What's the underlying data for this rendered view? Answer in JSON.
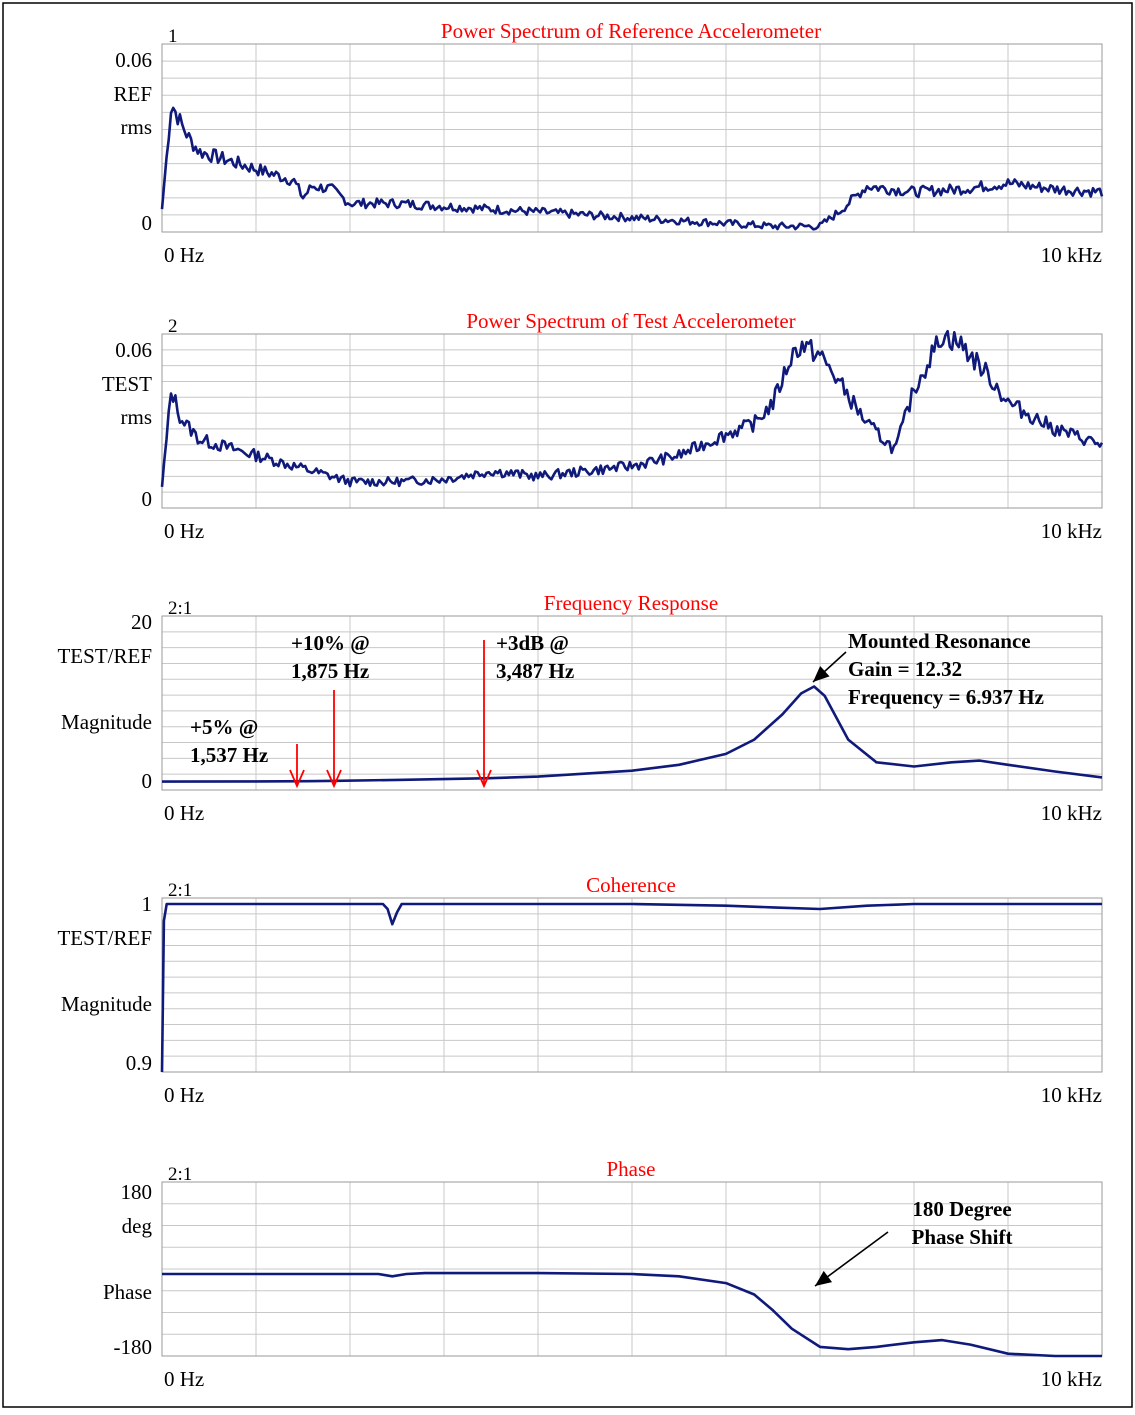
{
  "colors": {
    "trace": "#0f1a7a",
    "title": "#ff0000",
    "grid": "#c8c8c8",
    "border": "#000000",
    "arrow_red": "#ff0000",
    "arrow_black": "#000000"
  },
  "chart_data": [
    {
      "type": "line",
      "id": "ref",
      "panel_number": "1",
      "title": "Power Spectrum of Reference Accelerometer",
      "ylabel_lines": [
        "REF",
        "rms"
      ],
      "yticks": [
        "0.06",
        "0"
      ],
      "ylim": [
        0,
        0.06
      ],
      "xlim": [
        0,
        10000
      ],
      "x_tick_labels": [
        "0  Hz",
        "10 kHz"
      ],
      "x_unit": "Hz",
      "grid": true,
      "series": [
        {
          "x": [
            0,
            100,
            200,
            300,
            400,
            600,
            800,
            1000,
            1200,
            1400,
            1500,
            1600,
            1800,
            2000,
            2500,
            3000,
            3500,
            4000,
            4500,
            5000,
            5500,
            6000,
            6500,
            7000,
            7200,
            7500,
            8000,
            8500,
            9000,
            9500,
            10000
          ],
          "y": [
            0.008,
            0.045,
            0.038,
            0.032,
            0.028,
            0.026,
            0.024,
            0.022,
            0.02,
            0.018,
            0.012,
            0.016,
            0.015,
            0.01,
            0.01,
            0.009,
            0.008,
            0.007,
            0.006,
            0.005,
            0.004,
            0.003,
            0.002,
            0.002,
            0.007,
            0.016,
            0.014,
            0.015,
            0.017,
            0.015,
            0.014
          ]
        }
      ]
    },
    {
      "type": "line",
      "id": "test",
      "panel_number": "2",
      "title": "Power Spectrum of Test Accelerometer",
      "ylabel_lines": [
        "TEST",
        "rms"
      ],
      "yticks": [
        "0.06",
        "0"
      ],
      "ylim": [
        0,
        0.06
      ],
      "xlim": [
        0,
        10000
      ],
      "x_tick_labels": [
        "0  Hz",
        "10 kHz"
      ],
      "x_unit": "Hz",
      "grid": true,
      "series": [
        {
          "x": [
            0,
            100,
            200,
            400,
            600,
            800,
            1000,
            1500,
            2000,
            2500,
            3000,
            3500,
            4000,
            4500,
            5000,
            5500,
            6000,
            6300,
            6500,
            6700,
            6800,
            7000,
            7200,
            7500,
            7800,
            8000,
            8300,
            8500,
            8800,
            9000,
            9500,
            10000
          ],
          "y": [
            0.008,
            0.045,
            0.034,
            0.026,
            0.024,
            0.022,
            0.02,
            0.015,
            0.01,
            0.01,
            0.011,
            0.014,
            0.012,
            0.014,
            0.016,
            0.02,
            0.028,
            0.032,
            0.04,
            0.058,
            0.062,
            0.058,
            0.048,
            0.032,
            0.022,
            0.045,
            0.066,
            0.062,
            0.05,
            0.04,
            0.03,
            0.024
          ]
        }
      ]
    },
    {
      "type": "line",
      "id": "freq",
      "panel_number": "2:1",
      "title": "Frequency Response",
      "ylabel_lines": [
        "TEST/REF",
        "",
        "Magnitude"
      ],
      "yticks": [
        "20",
        "0"
      ],
      "ylim": [
        0,
        20
      ],
      "xlim": [
        0,
        10000
      ],
      "x_tick_labels": [
        "0  Hz",
        "10 kHz"
      ],
      "x_unit": "Hz",
      "grid": true,
      "series": [
        {
          "x": [
            0,
            1000,
            1537,
            1875,
            2500,
            3487,
            4000,
            5000,
            5500,
            6000,
            6300,
            6600,
            6800,
            6937,
            7050,
            7300,
            7600,
            8000,
            8400,
            8700,
            9000,
            9500,
            10000
          ],
          "y": [
            1.0,
            1.02,
            1.05,
            1.1,
            1.2,
            1.41,
            1.6,
            2.3,
            3.0,
            4.3,
            6.0,
            9.0,
            11.5,
            12.32,
            11.2,
            6.0,
            3.3,
            2.8,
            3.3,
            3.5,
            3.0,
            2.2,
            1.5
          ]
        }
      ],
      "annotations": [
        {
          "lines": [
            "+5% @",
            "1,537 Hz"
          ],
          "arrow_x": 1537,
          "arrow_color": "red"
        },
        {
          "lines": [
            "+10% @",
            "1,875 Hz"
          ],
          "arrow_x": 1875,
          "arrow_color": "red"
        },
        {
          "lines": [
            "+3dB @",
            "3,487 Hz"
          ],
          "arrow_x": 3487,
          "arrow_color": "red"
        },
        {
          "lines": [
            "Mounted Resonance",
            "Gain = 12.32",
            "Frequency = 6.937 Hz"
          ],
          "arrow_x": 6937,
          "arrow_color": "black"
        }
      ]
    },
    {
      "type": "line",
      "id": "coh",
      "panel_number": "2:1",
      "title": "Coherence",
      "ylabel_lines": [
        "TEST/REF",
        "",
        "Magnitude"
      ],
      "yticks": [
        "1",
        "0.9"
      ],
      "ylim": [
        0.9,
        1.0
      ],
      "xlim": [
        0,
        10000
      ],
      "x_tick_labels": [
        "0  Hz",
        "10 kHz"
      ],
      "x_unit": "Hz",
      "grid": true,
      "series": [
        {
          "x": [
            0,
            20,
            50,
            2000,
            2350,
            2400,
            2450,
            2500,
            2550,
            2600,
            5000,
            6000,
            6500,
            7000,
            7500,
            8000,
            10000
          ],
          "y": [
            0.9,
            0.99,
            1.0,
            1.0,
            1.0,
            0.997,
            0.988,
            0.995,
            1.0,
            1.0,
            1.0,
            0.999,
            0.998,
            0.997,
            0.999,
            1.0,
            1.0
          ]
        }
      ]
    },
    {
      "type": "line",
      "id": "phase",
      "panel_number": "2:1",
      "title": "Phase",
      "ylabel_lines": [
        "deg",
        "",
        "Phase"
      ],
      "yticks": [
        "180",
        "-180"
      ],
      "ylim": [
        -180,
        180
      ],
      "xlim": [
        0,
        10000
      ],
      "x_tick_labels": [
        "0  Hz",
        "10 kHz"
      ],
      "x_unit": "Hz",
      "grid": true,
      "series": [
        {
          "x": [
            0,
            2000,
            2300,
            2450,
            2600,
            2800,
            3000,
            4000,
            5000,
            5500,
            6000,
            6300,
            6500,
            6700,
            7000,
            7300,
            7600,
            8000,
            8300,
            8600,
            9000,
            9500,
            10000
          ],
          "y": [
            0,
            0,
            0,
            -5,
            0,
            2,
            2,
            2,
            0,
            -5,
            -20,
            -45,
            -80,
            -120,
            -160,
            -165,
            -160,
            -150,
            -145,
            -155,
            -175,
            -180,
            -180
          ]
        }
      ],
      "annotations": [
        {
          "lines": [
            "180 Degree",
            "Phase Shift"
          ],
          "arrow_x": 6937,
          "arrow_color": "black"
        }
      ]
    }
  ]
}
